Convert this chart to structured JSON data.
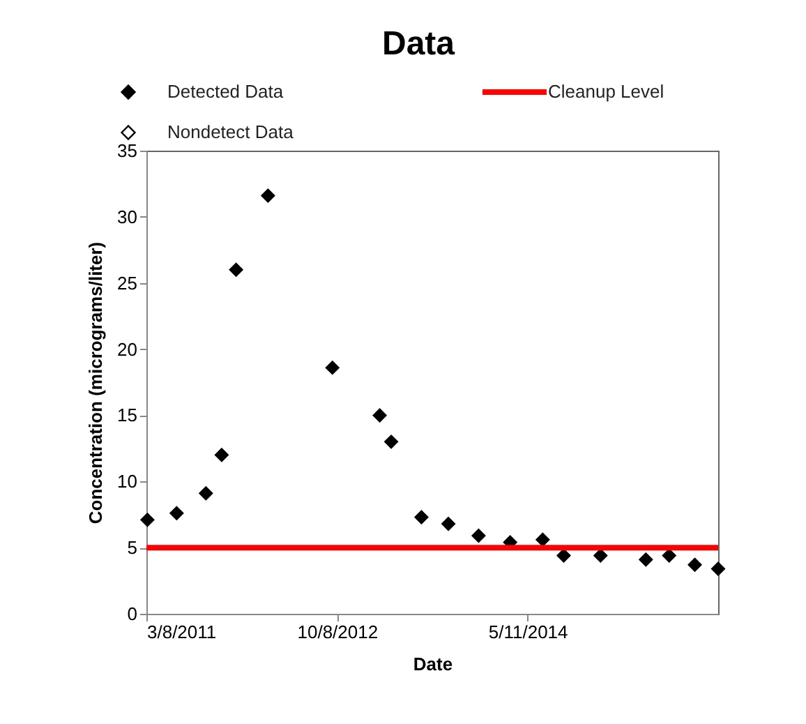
{
  "chart_data": {
    "type": "scatter",
    "title": "Data",
    "xlabel": "Date",
    "ylabel": "Concentration (micrograms/liter)",
    "x": [
      "2011-03-11",
      "2011-06-08",
      "2011-09-05",
      "2011-10-23",
      "2011-12-06",
      "2012-03-12",
      "2012-09-24",
      "2013-02-15",
      "2013-03-22",
      "2013-06-22",
      "2013-09-12",
      "2013-12-13",
      "2014-03-19",
      "2014-06-26",
      "2014-08-29",
      "2014-12-19",
      "2015-05-06",
      "2015-07-16",
      "2015-10-02",
      "2015-12-12"
    ],
    "series": [
      {
        "name": "Detected Data",
        "color": "#000000",
        "values": [
          7.1,
          7.6,
          9.1,
          12.0,
          26.0,
          31.6,
          18.6,
          15.0,
          13.0,
          7.3,
          6.8,
          5.9,
          5.4,
          5.6,
          4.4,
          4.4,
          4.1,
          4.4,
          3.7,
          3.4
        ]
      },
      {
        "name": "Nondetect Data",
        "color": "#000000",
        "values": [
          null,
          null,
          null,
          null,
          null,
          null,
          null,
          null,
          null,
          null,
          null,
          null,
          null,
          null,
          null,
          null,
          null,
          null,
          null,
          null
        ]
      }
    ],
    "ref_lines": [
      {
        "axis": "y",
        "value": 5,
        "label": "Cleanup Level",
        "color": "#ff0000"
      }
    ],
    "xlim": [
      "2011-03-08",
      "2015-12-12"
    ],
    "xticks": [
      {
        "value": "2011-03-08",
        "label": "3/8/2011"
      },
      {
        "value": "2012-10-08",
        "label": "10/8/2012"
      },
      {
        "value": "2014-05-11",
        "label": "5/11/2014"
      }
    ],
    "ylim": [
      0,
      35
    ],
    "yticks": [
      0,
      5,
      10,
      15,
      20,
      25,
      30,
      35
    ],
    "marker": "diamond",
    "grid": false,
    "legend": "top"
  }
}
